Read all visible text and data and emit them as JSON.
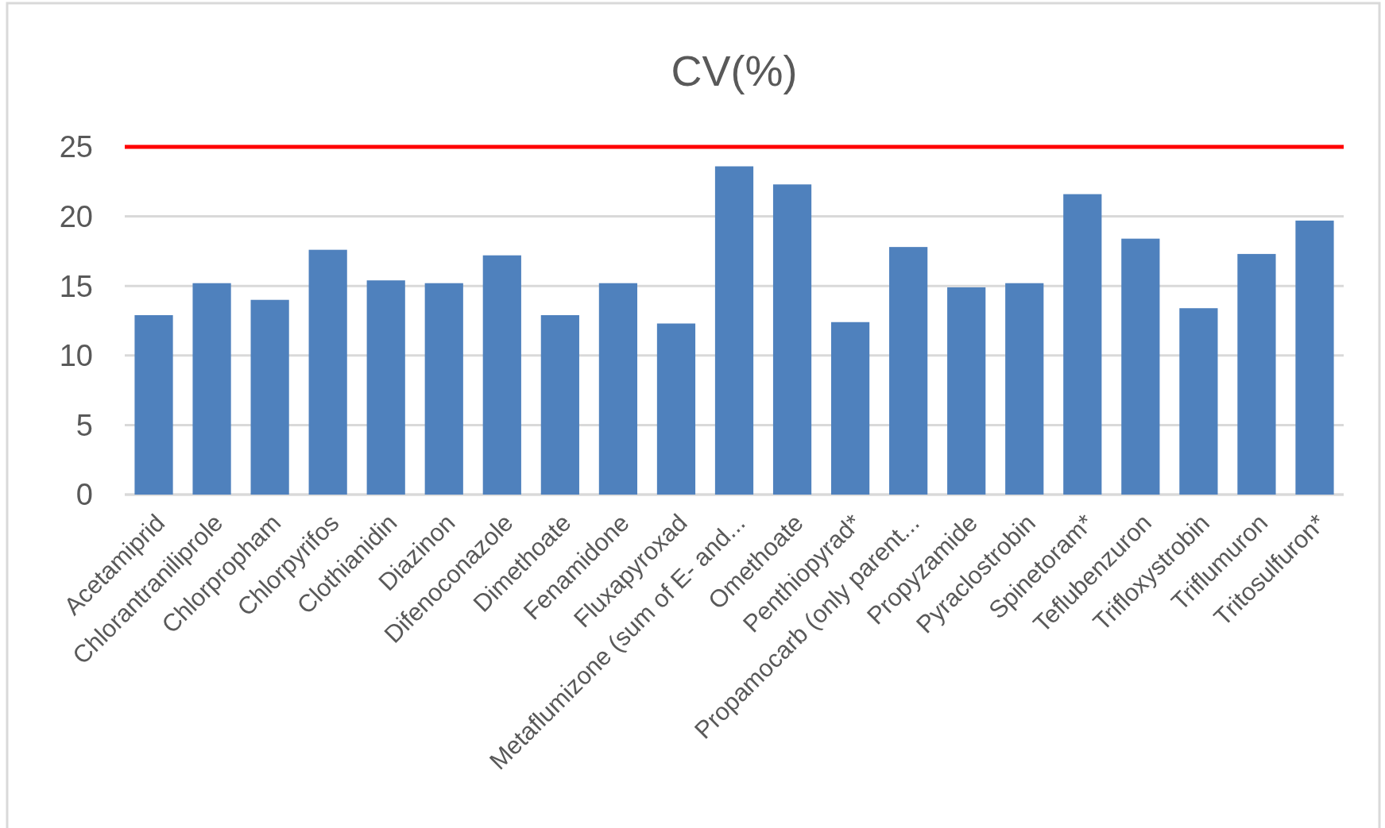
{
  "chart_data": {
    "type": "bar",
    "title": "CV(%)",
    "categories": [
      "Acetamiprid",
      "Chlorantraniliprole",
      "Chlorpropham",
      "Chlorpyrifos",
      "Clothianidin",
      "Diazinon",
      "Difenoconazole",
      "Dimethoate",
      "Fenamidone",
      "Fluxapyroxad",
      "Metaflumizone (sum of E- and...",
      "Omethoate",
      "Penthiopyrad*",
      "Propamocarb (only parent...",
      "Propyzamide",
      "Pyraclostrobin",
      "Spinetoram*",
      "Teflubenzuron",
      "Trifloxystrobin",
      "Triflumuron",
      "Tritosulfuron*"
    ],
    "values": [
      12.9,
      15.2,
      14.0,
      17.6,
      15.4,
      15.2,
      17.2,
      12.9,
      15.2,
      12.3,
      23.6,
      22.3,
      12.4,
      17.8,
      14.9,
      15.2,
      21.6,
      18.4,
      13.4,
      17.3,
      19.7
    ],
    "color": "#4f81bd",
    "ylim": [
      0,
      25
    ],
    "yticks": [
      0,
      5,
      10,
      15,
      20,
      25
    ],
    "grid": "y",
    "ref_lines": [
      {
        "axis": "y",
        "value": 25,
        "color": "#ff0000"
      }
    ]
  }
}
